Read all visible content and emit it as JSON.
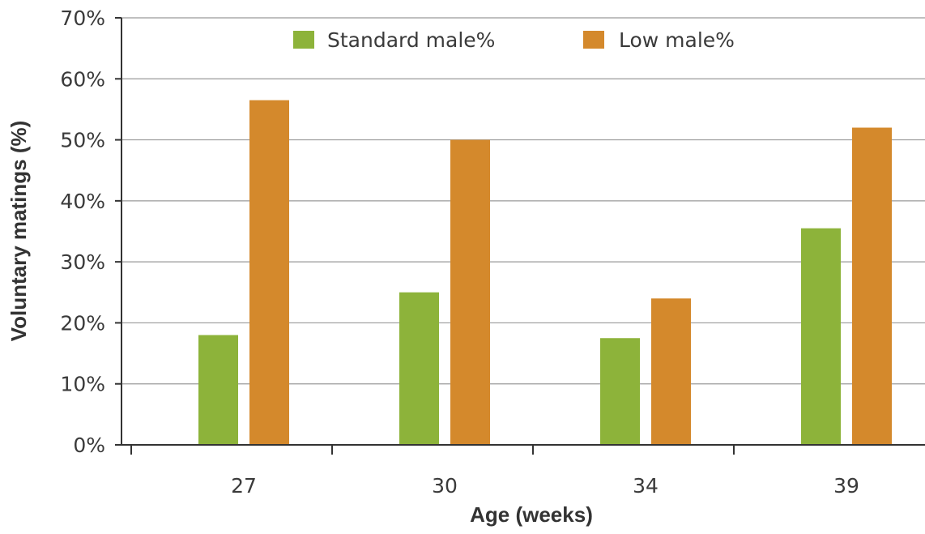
{
  "chart_data": {
    "type": "bar",
    "categories": [
      "27",
      "30",
      "34",
      "39"
    ],
    "series": [
      {
        "name": "Standard male%",
        "color": "#8db33a",
        "values": [
          18,
          25,
          17.5,
          35.5
        ]
      },
      {
        "name": "Low male%",
        "color": "#d4892c",
        "values": [
          56.5,
          50,
          24,
          52
        ]
      }
    ],
    "xlabel": "Age (weeks)",
    "ylabel": "Voluntary matings (%)",
    "ylim": [
      0,
      70
    ],
    "yticks": [
      "0%",
      "10%",
      "20%",
      "30%",
      "40%",
      "50%",
      "60%",
      "70%"
    ],
    "grid": true,
    "legend": "top-center"
  }
}
